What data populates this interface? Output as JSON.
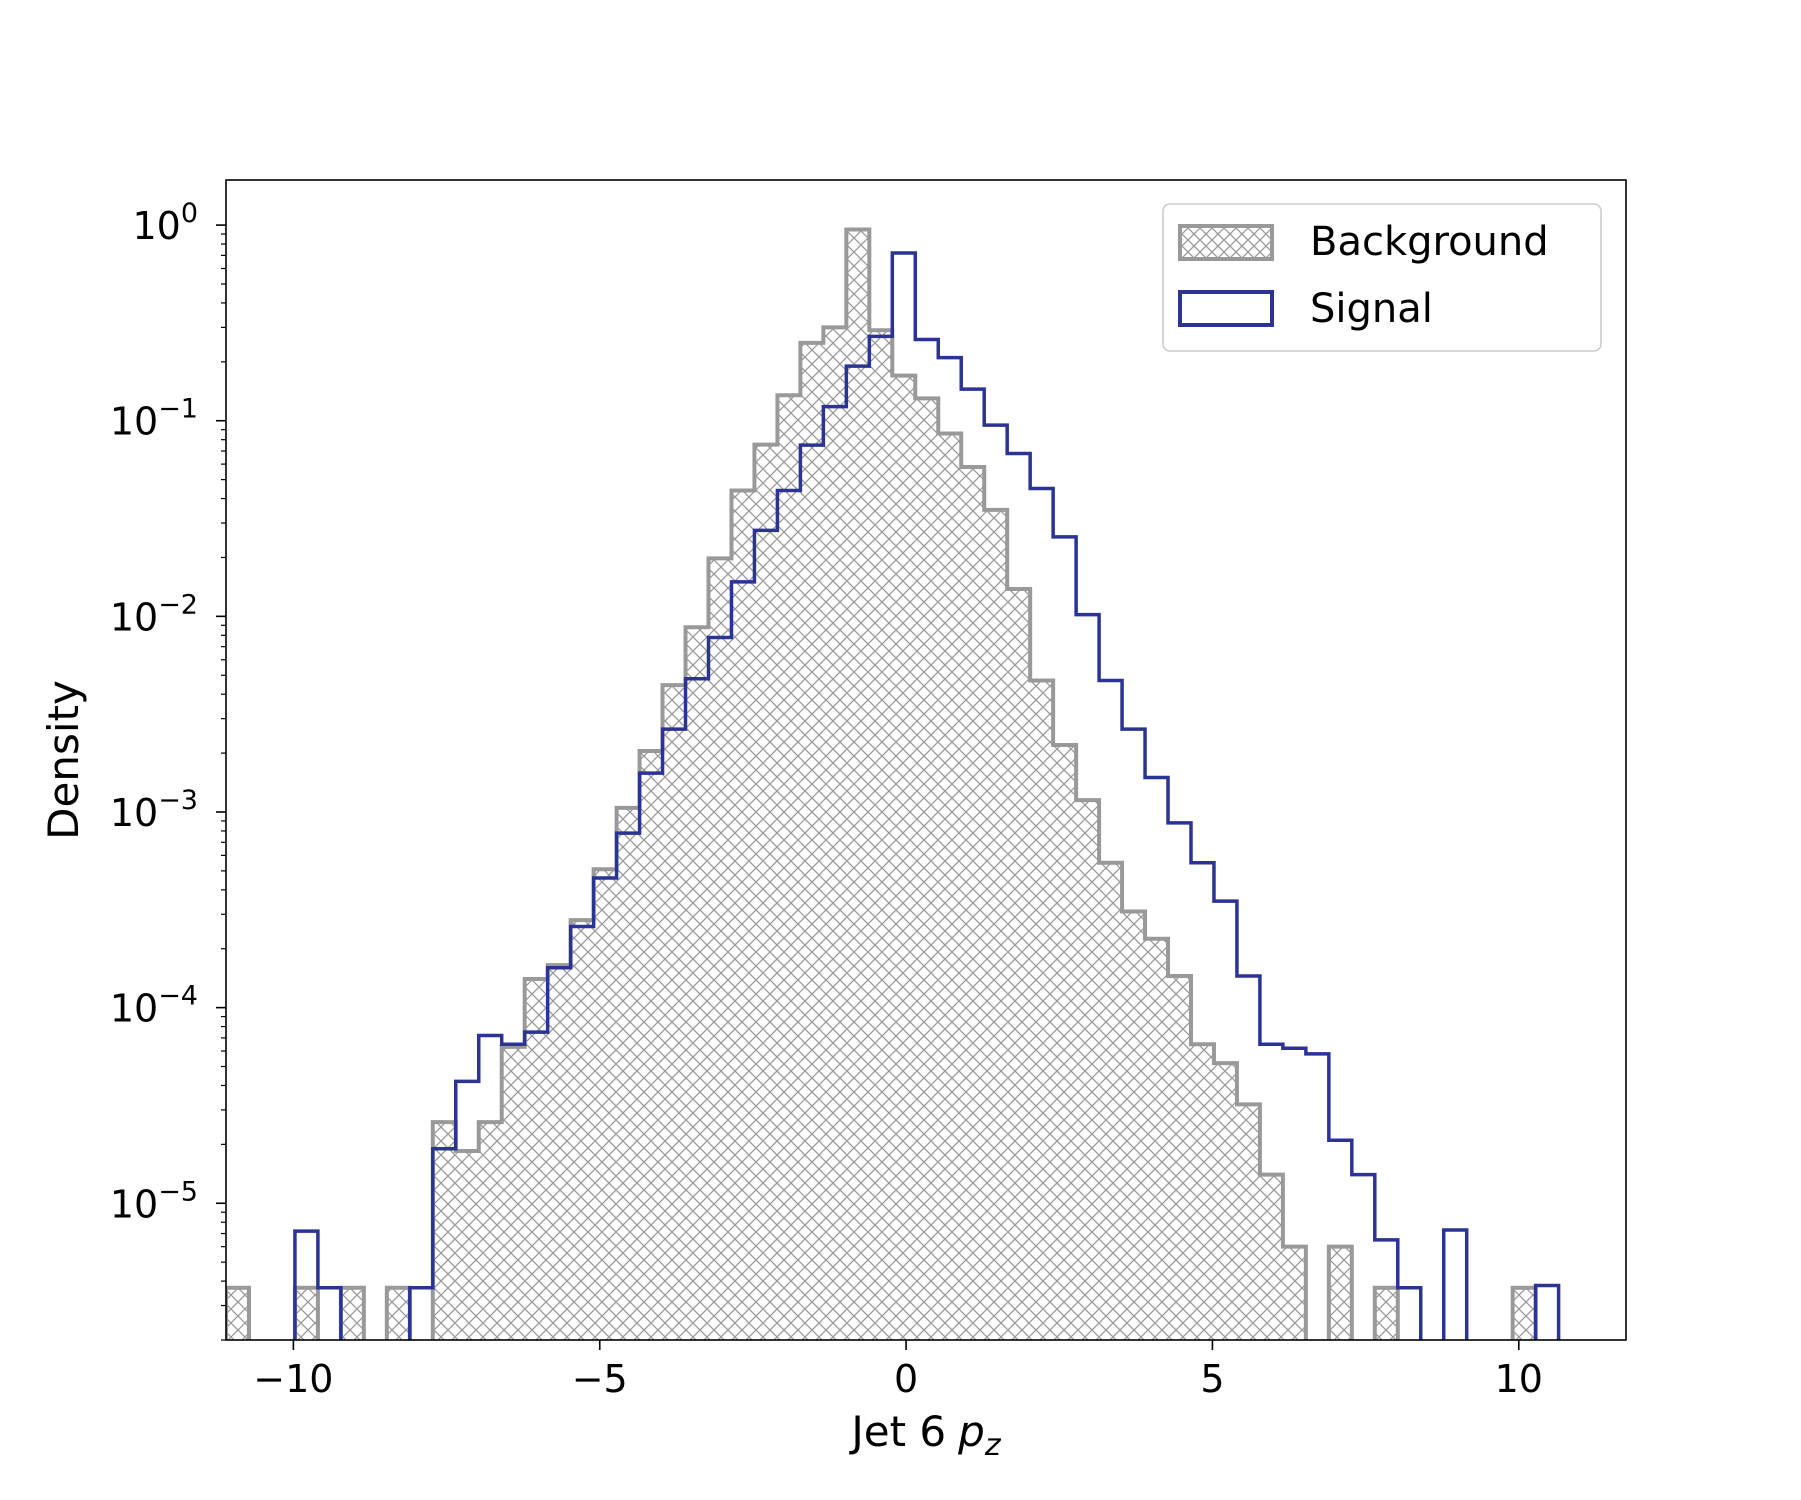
{
  "chart_data": {
    "type": "histogram",
    "title": "",
    "xlabel": "Jet 6",
    "xlabel_symbol": "p",
    "xlabel_subscript": "z",
    "ylabel": "Density",
    "yscale": "log",
    "xlim": [
      -11.1,
      11.75
    ],
    "ylim": [
      2e-06,
      1.7
    ],
    "x_ticks": [
      -10,
      -5,
      0,
      5,
      10
    ],
    "x_tick_labels": [
      "−10",
      "−5",
      "0",
      "5",
      "10"
    ],
    "y_ticks": [
      1e-05,
      0.0001,
      0.001,
      0.01,
      0.1,
      1
    ],
    "y_tick_bases": [
      "10",
      "10",
      "10",
      "10",
      "10",
      "10"
    ],
    "y_tick_exponents": [
      "−5",
      "−4",
      "−3",
      "−2",
      "−1",
      "0"
    ],
    "grid": false,
    "legend_position": "top-right",
    "bin_start": -11.1,
    "bin_width": 0.375,
    "series": [
      {
        "name": "Background",
        "style": "hatched",
        "color": "#999999",
        "values": [
          3.7e-06,
          0,
          0,
          3.7e-06,
          0,
          3.7e-06,
          0,
          3.7e-06,
          0,
          2.6e-05,
          1.85e-05,
          2.6e-05,
          6.3e-05,
          0.00014,
          0.000165,
          0.00028,
          0.00051,
          0.00105,
          0.00205,
          0.00445,
          0.0088,
          0.0198,
          0.044,
          0.0755,
          0.135,
          0.25,
          0.3,
          0.95,
          0.29,
          0.17,
          0.13,
          0.086,
          0.058,
          0.035,
          0.0138,
          0.0047,
          0.0022,
          0.00115,
          0.00055,
          0.00031,
          0.000225,
          0.000145,
          6.5e-05,
          5.2e-05,
          3.2e-05,
          1.4e-05,
          6e-06,
          0,
          6e-06,
          0,
          3.7e-06,
          0,
          0,
          0,
          0,
          0,
          3.7e-06
        ]
      },
      {
        "name": "Signal",
        "style": "step",
        "color": "#2b3494",
        "values": [
          0,
          0,
          0,
          7.2e-06,
          3.7e-06,
          0,
          0,
          0,
          3.7e-06,
          1.9e-05,
          4.2e-05,
          7.2e-05,
          6.5e-05,
          7.5e-05,
          0.00016,
          0.00026,
          0.00046,
          0.00078,
          0.00158,
          0.00265,
          0.0048,
          0.0078,
          0.015,
          0.0275,
          0.044,
          0.075,
          0.118,
          0.19,
          0.27,
          0.72,
          0.26,
          0.21,
          0.145,
          0.095,
          0.068,
          0.045,
          0.0255,
          0.0102,
          0.0047,
          0.00265,
          0.0015,
          0.00088,
          0.00055,
          0.00035,
          0.000145,
          6.5e-05,
          6.2e-05,
          5.8e-05,
          2.1e-05,
          1.4e-05,
          6.5e-06,
          3.7e-06,
          0,
          7.3e-06,
          0,
          0,
          0,
          3.8e-06
        ]
      }
    ]
  }
}
